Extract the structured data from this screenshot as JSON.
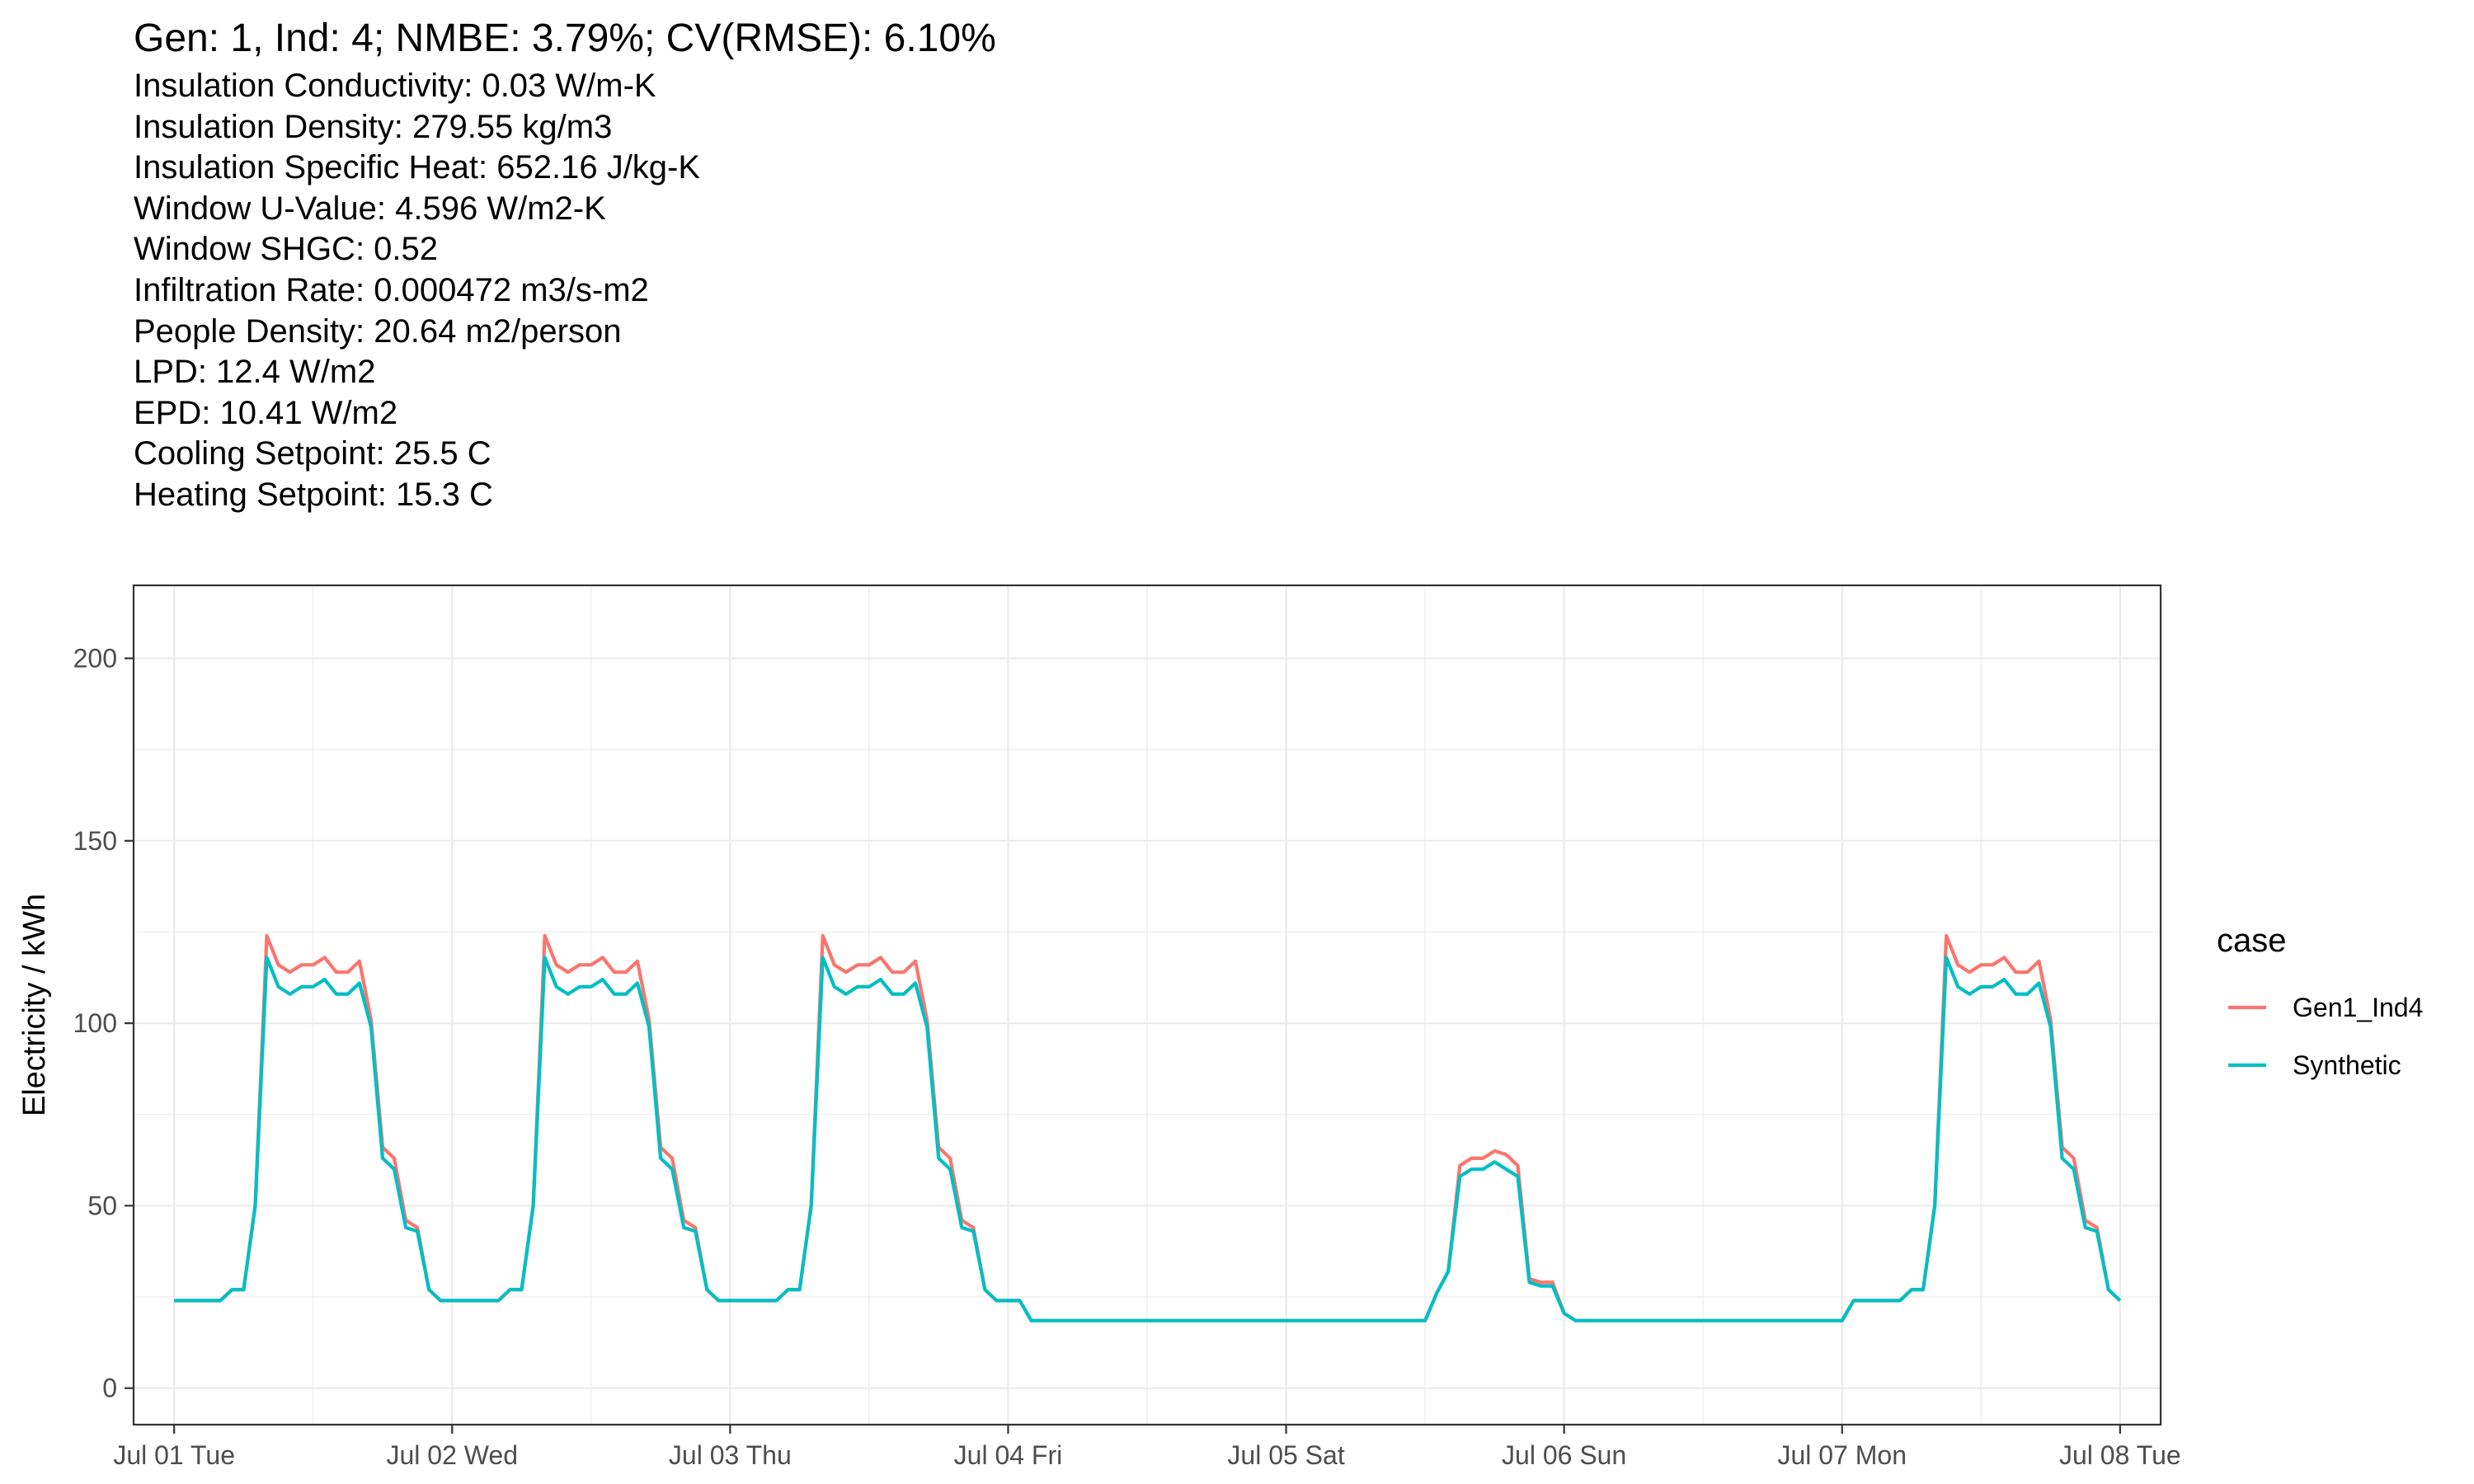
{
  "chart_data": {
    "type": "line",
    "title": "Gen: 1, Ind: 4; NMBE: 3.79%; CV(RMSE): 6.10%",
    "subtitle_lines": [
      "Insulation Conductivity: 0.03 W/m-K",
      "Insulation Density: 279.55 kg/m3",
      "Insulation Specific Heat: 652.16 J/kg-K",
      "Window U-Value: 4.596 W/m2-K",
      "Window SHGC: 0.52",
      "Infiltration Rate: 0.000472 m3/s-m2",
      "People Density: 20.64 m2/person",
      "LPD: 12.4 W/m2",
      "EPD: 10.41 W/m2",
      "Cooling Setpoint: 25.5 C",
      "Heating Setpoint: 15.3 C"
    ],
    "xlabel": "",
    "ylabel": "Electricity / kWh",
    "x_unit": "hours from Jul 01 00:00",
    "x_range": [
      -3.5,
      171.5
    ],
    "ylim": [
      -10,
      220
    ],
    "y_ticks": [
      0,
      50,
      100,
      150,
      200
    ],
    "x_ticks": [
      {
        "x": 0,
        "label": "Jul 01 Tue"
      },
      {
        "x": 24,
        "label": "Jul 02 Wed"
      },
      {
        "x": 48,
        "label": "Jul 03 Thu"
      },
      {
        "x": 72,
        "label": "Jul 04 Fri"
      },
      {
        "x": 96,
        "label": "Jul 05 Sat"
      },
      {
        "x": 120,
        "label": "Jul 06 Sun"
      },
      {
        "x": 144,
        "label": "Jul 07 Mon"
      },
      {
        "x": 168,
        "label": "Jul 08 Tue"
      }
    ],
    "grid": true,
    "legend": {
      "title": "case",
      "position": "right"
    },
    "weekday_profiles": {
      "Gen1_Ind4": [
        24,
        24,
        24,
        24,
        24,
        27,
        27,
        50,
        124,
        116,
        114,
        116,
        116,
        118,
        114,
        114,
        117,
        101,
        66,
        63,
        46,
        44,
        27,
        24
      ],
      "Synthetic": [
        24,
        24,
        24,
        24,
        24,
        27,
        27,
        50,
        118,
        110,
        108,
        110,
        110,
        112,
        108,
        108,
        111,
        99,
        63,
        60,
        44,
        43,
        27,
        24
      ]
    },
    "series": [
      {
        "name": "Gen1_Ind4",
        "color": "#F8766D",
        "start_hour": 0,
        "values": [
          24,
          24,
          24,
          24,
          24,
          27,
          27,
          50,
          124,
          116,
          114,
          116,
          116,
          118,
          114,
          114,
          117,
          101,
          66,
          63,
          46,
          44,
          27,
          24,
          24,
          24,
          24,
          24,
          24,
          27,
          27,
          50,
          124,
          116,
          114,
          116,
          116,
          118,
          114,
          114,
          117,
          101,
          66,
          63,
          46,
          44,
          27,
          24,
          24,
          24,
          24,
          24,
          24,
          27,
          27,
          50,
          124,
          116,
          114,
          116,
          116,
          118,
          114,
          114,
          117,
          101,
          66,
          63,
          46,
          44,
          27,
          24,
          24,
          24,
          18.5,
          18.5,
          18.5,
          18.5,
          18.5,
          18.5,
          18.5,
          18.5,
          18.5,
          18.5,
          18.5,
          18.5,
          18.5,
          18.5,
          18.5,
          18.5,
          18.5,
          18.5,
          18.5,
          18.5,
          18.5,
          18.5,
          18.5,
          18.5,
          18.5,
          18.5,
          18.5,
          18.5,
          18.5,
          18.5,
          18.5,
          18.5,
          18.5,
          18.5,
          18.5,
          26,
          32,
          61,
          63,
          63,
          65,
          64,
          61,
          30,
          29,
          29,
          20.5,
          18.5,
          18.5,
          18.5,
          18.5,
          18.5,
          18.5,
          18.5,
          18.5,
          18.5,
          18.5,
          18.5,
          18.5,
          18.5,
          18.5,
          18.5,
          18.5,
          18.5,
          18.5,
          18.5,
          18.5,
          18.5,
          18.5,
          18.5,
          18.5,
          24,
          24,
          24,
          24,
          24,
          27,
          27,
          50,
          124,
          116,
          114,
          116,
          116,
          118,
          114,
          114,
          117,
          101,
          66,
          63,
          46,
          44,
          27,
          24
        ]
      },
      {
        "name": "Synthetic",
        "color": "#00BFC4",
        "start_hour": 0,
        "values": [
          24,
          24,
          24,
          24,
          24,
          27,
          27,
          50,
          118,
          110,
          108,
          110,
          110,
          112,
          108,
          108,
          111,
          99,
          63,
          60,
          44,
          43,
          27,
          24,
          24,
          24,
          24,
          24,
          24,
          27,
          27,
          50,
          118,
          110,
          108,
          110,
          110,
          112,
          108,
          108,
          111,
          99,
          63,
          60,
          44,
          43,
          27,
          24,
          24,
          24,
          24,
          24,
          24,
          27,
          27,
          50,
          118,
          110,
          108,
          110,
          110,
          112,
          108,
          108,
          111,
          99,
          63,
          60,
          44,
          43,
          27,
          24,
          24,
          24,
          18.5,
          18.5,
          18.5,
          18.5,
          18.5,
          18.5,
          18.5,
          18.5,
          18.5,
          18.5,
          18.5,
          18.5,
          18.5,
          18.5,
          18.5,
          18.5,
          18.5,
          18.5,
          18.5,
          18.5,
          18.5,
          18.5,
          18.5,
          18.5,
          18.5,
          18.5,
          18.5,
          18.5,
          18.5,
          18.5,
          18.5,
          18.5,
          18.5,
          18.5,
          18.5,
          26,
          32,
          58,
          60,
          60,
          62,
          60,
          58,
          29,
          28,
          28,
          20.5,
          18.5,
          18.5,
          18.5,
          18.5,
          18.5,
          18.5,
          18.5,
          18.5,
          18.5,
          18.5,
          18.5,
          18.5,
          18.5,
          18.5,
          18.5,
          18.5,
          18.5,
          18.5,
          18.5,
          18.5,
          18.5,
          18.5,
          18.5,
          18.5,
          24,
          24,
          24,
          24,
          24,
          27,
          27,
          50,
          118,
          110,
          108,
          110,
          110,
          112,
          108,
          108,
          111,
          99,
          63,
          60,
          44,
          43,
          27,
          24
        ]
      }
    ]
  }
}
